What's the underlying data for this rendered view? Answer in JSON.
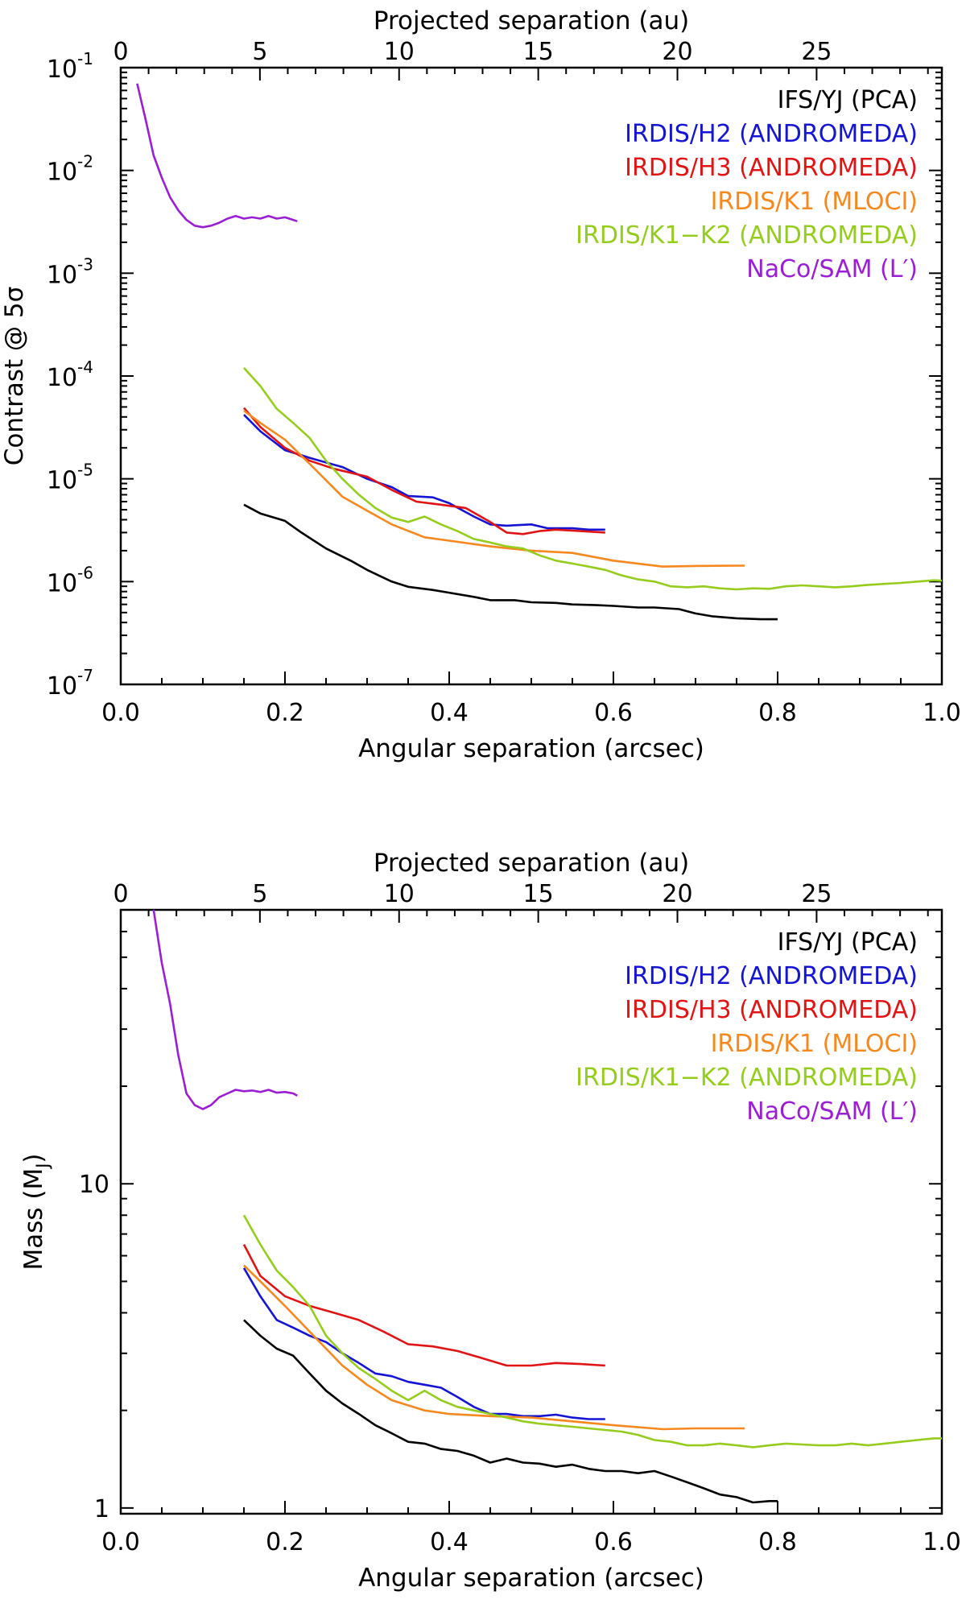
{
  "chart_data": [
    {
      "type": "line",
      "title": "",
      "xlabel": "Angular separation (arcsec)",
      "top_xlabel": "Projected separation (au)",
      "ylabel": "Contrast @ 5σ",
      "xlim": [
        0,
        1
      ],
      "top_xlim": [
        0,
        29.5
      ],
      "yscale": "log",
      "ylim": [
        1e-07,
        0.1
      ],
      "x_ticks": [
        "0.0",
        "0.2",
        "0.4",
        "0.6",
        "0.8",
        "1.0"
      ],
      "top_ticks": [
        "0",
        "5",
        "10",
        "15",
        "20",
        "25"
      ],
      "y_ticks": [
        {
          "base": "10",
          "exp": "-7"
        },
        {
          "base": "10",
          "exp": "-6"
        },
        {
          "base": "10",
          "exp": "-5"
        },
        {
          "base": "10",
          "exp": "-4"
        },
        {
          "base": "10",
          "exp": "-3"
        },
        {
          "base": "10",
          "exp": "-2"
        },
        {
          "base": "10",
          "exp": "-1"
        }
      ],
      "legend_position": "top-right",
      "series": [
        {
          "name": "IFS/YJ (PCA)",
          "color": "#000000",
          "x": [
            0.15,
            0.17,
            0.2,
            0.22,
            0.25,
            0.28,
            0.3,
            0.33,
            0.35,
            0.38,
            0.4,
            0.43,
            0.45,
            0.48,
            0.5,
            0.53,
            0.55,
            0.58,
            0.6,
            0.63,
            0.65,
            0.68,
            0.7,
            0.72,
            0.75,
            0.78,
            0.8
          ],
          "y": [
            5.6e-06,
            4.6e-06,
            3.9e-06,
            3e-06,
            2.1e-06,
            1.6e-06,
            1.3e-06,
            1e-06,
            8.9e-07,
            8.3e-07,
            7.8e-07,
            7.1e-07,
            6.6e-07,
            6.6e-07,
            6.3e-07,
            6.2e-07,
            6e-07,
            5.9e-07,
            5.8e-07,
            5.6e-07,
            5.6e-07,
            5.4e-07,
            4.9e-07,
            4.6e-07,
            4.4e-07,
            4.3e-07,
            4.3e-07
          ]
        },
        {
          "name": "IRDIS/H2 (ANDROMEDA)",
          "color": "#1414d2",
          "x": [
            0.15,
            0.17,
            0.2,
            0.23,
            0.27,
            0.3,
            0.33,
            0.35,
            0.38,
            0.4,
            0.43,
            0.45,
            0.47,
            0.5,
            0.52,
            0.55,
            0.57,
            0.59
          ],
          "y": [
            4.2e-05,
            2.9e-05,
            1.9e-05,
            1.6e-05,
            1.3e-05,
            1e-05,
            8.3e-06,
            6.8e-06,
            6.6e-06,
            5.8e-06,
            4.3e-06,
            3.6e-06,
            3.5e-06,
            3.6e-06,
            3.3e-06,
            3.3e-06,
            3.2e-06,
            3.2e-06
          ]
        },
        {
          "name": "IRDIS/H3 (ANDROMEDA)",
          "color": "#e01414",
          "x": [
            0.15,
            0.17,
            0.2,
            0.23,
            0.26,
            0.3,
            0.33,
            0.36,
            0.39,
            0.42,
            0.45,
            0.47,
            0.49,
            0.51,
            0.53,
            0.56,
            0.59
          ],
          "y": [
            4.9e-05,
            3.2e-05,
            2e-05,
            1.5e-05,
            1.25e-05,
            1.05e-05,
            7.8e-06,
            6e-06,
            5.6e-06,
            5.2e-06,
            3.8e-06,
            3e-06,
            2.9e-06,
            3.1e-06,
            3.2e-06,
            3.1e-06,
            3e-06
          ]
        },
        {
          "name": "IRDIS/K1 (MLOCI)",
          "color": "#f5881e",
          "x": [
            0.15,
            0.17,
            0.2,
            0.23,
            0.27,
            0.3,
            0.33,
            0.37,
            0.4,
            0.45,
            0.5,
            0.55,
            0.6,
            0.66,
            0.7,
            0.76
          ],
          "y": [
            4.6e-05,
            3.5e-05,
            2.4e-05,
            1.4e-05,
            6.7e-06,
            4.9e-06,
            3.6e-06,
            2.7e-06,
            2.5e-06,
            2.2e-06,
            2e-06,
            1.9e-06,
            1.6e-06,
            1.4e-06,
            1.42e-06,
            1.43e-06
          ]
        },
        {
          "name": "IRDIS/K1−K2 (ANDROMEDA)",
          "color": "#96cc1e",
          "x": [
            0.15,
            0.17,
            0.19,
            0.21,
            0.23,
            0.25,
            0.27,
            0.29,
            0.31,
            0.33,
            0.35,
            0.37,
            0.39,
            0.41,
            0.43,
            0.45,
            0.47,
            0.49,
            0.51,
            0.53,
            0.55,
            0.57,
            0.59,
            0.61,
            0.63,
            0.65,
            0.67,
            0.69,
            0.71,
            0.73,
            0.75,
            0.77,
            0.79,
            0.81,
            0.83,
            0.85,
            0.87,
            0.89,
            0.91,
            0.93,
            0.95,
            0.97,
            0.99,
            1.0
          ],
          "y": [
            0.00012,
            8e-05,
            4.8e-05,
            3.5e-05,
            2.5e-05,
            1.5e-05,
            1e-05,
            7e-06,
            5.2e-06,
            4.2e-06,
            3.8e-06,
            4.3e-06,
            3.6e-06,
            3.1e-06,
            2.6e-06,
            2.4e-06,
            2.2e-06,
            2.1e-06,
            1.8e-06,
            1.6e-06,
            1.5e-06,
            1.4e-06,
            1.3e-06,
            1.15e-06,
            1.05e-06,
            1e-06,
            9e-07,
            8.8e-07,
            9e-07,
            8.6e-07,
            8.4e-07,
            8.6e-07,
            8.5e-07,
            9e-07,
            9.2e-07,
            9e-07,
            8.8e-07,
            9e-07,
            9.3e-07,
            9.5e-07,
            9.7e-07,
            1e-06,
            1.03e-06,
            1.02e-06
          ]
        },
        {
          "name": "NaCo/SAM (L′)",
          "color": "#9a1ed2",
          "x": [
            0.02,
            0.03,
            0.04,
            0.05,
            0.06,
            0.07,
            0.08,
            0.09,
            0.1,
            0.11,
            0.12,
            0.13,
            0.14,
            0.15,
            0.16,
            0.17,
            0.18,
            0.19,
            0.2,
            0.21,
            0.215
          ],
          "y": [
            0.07,
            0.032,
            0.014,
            0.0085,
            0.0055,
            0.0041,
            0.0033,
            0.0029,
            0.0028,
            0.0029,
            0.0031,
            0.0034,
            0.0036,
            0.0034,
            0.0035,
            0.0034,
            0.0036,
            0.0034,
            0.0035,
            0.0033,
            0.0032
          ]
        }
      ]
    },
    {
      "type": "line",
      "title": "",
      "xlabel": "Angular separation (arcsec)",
      "top_xlabel": "Projected separation (au)",
      "ylabel": "Mass (M",
      "ylabel_sub": "J",
      "ylabel_close": ")",
      "xlim": [
        0,
        1
      ],
      "top_xlim": [
        0,
        29.5
      ],
      "yscale": "log",
      "ylim": [
        0.96,
        70
      ],
      "x_ticks": [
        "0.0",
        "0.2",
        "0.4",
        "0.6",
        "0.8",
        "1.0"
      ],
      "top_ticks": [
        "0",
        "5",
        "10",
        "15",
        "20",
        "25"
      ],
      "y_ticks": [
        "1",
        "10"
      ],
      "legend_position": "top-right",
      "series": [
        {
          "name": "IFS/YJ (PCA)",
          "color": "#000000",
          "x": [
            0.15,
            0.17,
            0.19,
            0.21,
            0.23,
            0.25,
            0.27,
            0.29,
            0.31,
            0.33,
            0.35,
            0.37,
            0.39,
            0.41,
            0.43,
            0.45,
            0.47,
            0.49,
            0.51,
            0.53,
            0.55,
            0.57,
            0.59,
            0.61,
            0.63,
            0.65,
            0.67,
            0.69,
            0.71,
            0.73,
            0.75,
            0.77,
            0.79,
            0.8
          ],
          "y": [
            3.8,
            3.4,
            3.1,
            2.95,
            2.6,
            2.3,
            2.1,
            1.95,
            1.8,
            1.7,
            1.6,
            1.58,
            1.52,
            1.5,
            1.45,
            1.38,
            1.42,
            1.38,
            1.37,
            1.34,
            1.36,
            1.32,
            1.3,
            1.3,
            1.28,
            1.3,
            1.25,
            1.2,
            1.15,
            1.1,
            1.08,
            1.04,
            1.05,
            1.05
          ]
        },
        {
          "name": "IRDIS/H2 (ANDROMEDA)",
          "color": "#1414d2",
          "x": [
            0.15,
            0.17,
            0.19,
            0.21,
            0.23,
            0.25,
            0.27,
            0.29,
            0.31,
            0.33,
            0.35,
            0.37,
            0.39,
            0.41,
            0.43,
            0.45,
            0.47,
            0.49,
            0.51,
            0.53,
            0.55,
            0.57,
            0.59
          ],
          "y": [
            5.5,
            4.5,
            3.8,
            3.6,
            3.4,
            3.25,
            3.0,
            2.8,
            2.6,
            2.55,
            2.45,
            2.4,
            2.35,
            2.2,
            2.05,
            1.95,
            1.95,
            1.92,
            1.92,
            1.94,
            1.9,
            1.88,
            1.88
          ]
        },
        {
          "name": "IRDIS/H3 (ANDROMEDA)",
          "color": "#e01414",
          "x": [
            0.15,
            0.17,
            0.2,
            0.23,
            0.26,
            0.29,
            0.32,
            0.35,
            0.38,
            0.41,
            0.44,
            0.47,
            0.5,
            0.53,
            0.56,
            0.59
          ],
          "y": [
            6.5,
            5.2,
            4.5,
            4.2,
            4.0,
            3.8,
            3.5,
            3.2,
            3.15,
            3.05,
            2.9,
            2.75,
            2.75,
            2.8,
            2.78,
            2.75
          ]
        },
        {
          "name": "IRDIS/K1 (MLOCI)",
          "color": "#f5881e",
          "x": [
            0.15,
            0.17,
            0.2,
            0.23,
            0.27,
            0.3,
            0.33,
            0.37,
            0.4,
            0.45,
            0.5,
            0.55,
            0.6,
            0.66,
            0.7,
            0.76
          ],
          "y": [
            5.6,
            5.0,
            4.2,
            3.5,
            2.75,
            2.4,
            2.15,
            2.0,
            1.95,
            1.92,
            1.9,
            1.85,
            1.8,
            1.75,
            1.76,
            1.76
          ]
        },
        {
          "name": "IRDIS/K1−K2 (ANDROMEDA)",
          "color": "#96cc1e",
          "x": [
            0.15,
            0.17,
            0.19,
            0.21,
            0.23,
            0.25,
            0.27,
            0.29,
            0.31,
            0.33,
            0.35,
            0.37,
            0.39,
            0.41,
            0.43,
            0.45,
            0.47,
            0.49,
            0.51,
            0.53,
            0.55,
            0.57,
            0.59,
            0.61,
            0.63,
            0.65,
            0.67,
            0.69,
            0.71,
            0.73,
            0.75,
            0.77,
            0.79,
            0.81,
            0.83,
            0.85,
            0.87,
            0.89,
            0.91,
            0.93,
            0.95,
            0.97,
            0.99,
            1.0
          ],
          "y": [
            8.0,
            6.5,
            5.4,
            4.8,
            4.2,
            3.4,
            3.0,
            2.7,
            2.5,
            2.3,
            2.15,
            2.3,
            2.15,
            2.05,
            2.0,
            1.95,
            1.9,
            1.85,
            1.82,
            1.8,
            1.78,
            1.76,
            1.74,
            1.72,
            1.68,
            1.62,
            1.6,
            1.56,
            1.56,
            1.58,
            1.56,
            1.54,
            1.56,
            1.58,
            1.57,
            1.56,
            1.56,
            1.58,
            1.56,
            1.58,
            1.6,
            1.62,
            1.64,
            1.64
          ]
        },
        {
          "name": "NaCo/SAM (L′)",
          "color": "#9a1ed2",
          "x": [
            0.04,
            0.05,
            0.06,
            0.065,
            0.07,
            0.08,
            0.09,
            0.1,
            0.11,
            0.12,
            0.13,
            0.14,
            0.15,
            0.16,
            0.17,
            0.18,
            0.19,
            0.2,
            0.21,
            0.215
          ],
          "y": [
            70,
            48,
            36,
            30,
            25,
            19,
            17.5,
            17,
            17.5,
            18.5,
            19,
            19.5,
            19.3,
            19.4,
            19.2,
            19.5,
            19.1,
            19.2,
            19.0,
            18.7
          ]
        }
      ]
    }
  ]
}
